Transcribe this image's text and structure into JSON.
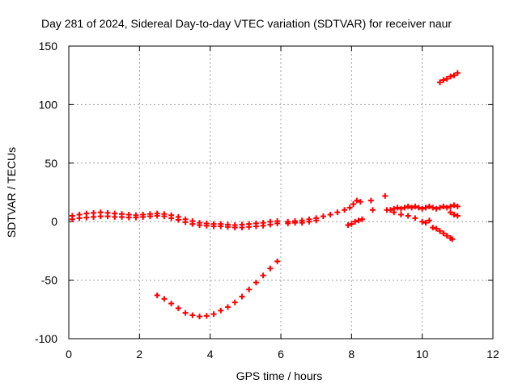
{
  "chart_data": {
    "type": "scatter",
    "title": "Day 281 of 2024, Sidereal Day-to-day VTEC variation (SDTVAR) for receiver naur",
    "xlabel": "GPS time / hours",
    "ylabel": "SDTVAR / TECUs",
    "xlim": [
      0,
      12
    ],
    "ylim": [
      -100,
      150
    ],
    "xticks": [
      0,
      2,
      4,
      6,
      8,
      10,
      12
    ],
    "yticks": [
      -100,
      -50,
      0,
      50,
      100,
      150
    ],
    "grid": true,
    "marker": "+",
    "color": "#ff0000",
    "series": [
      {
        "name": "main-band",
        "points": [
          [
            0.1,
            5
          ],
          [
            0.3,
            6
          ],
          [
            0.5,
            7
          ],
          [
            0.7,
            7.5
          ],
          [
            0.9,
            8
          ],
          [
            1.1,
            7.5
          ],
          [
            1.3,
            7
          ],
          [
            1.5,
            6.5
          ],
          [
            1.7,
            6
          ],
          [
            1.9,
            5.5
          ],
          [
            2.1,
            6
          ],
          [
            2.3,
            6.5
          ],
          [
            2.5,
            7
          ],
          [
            2.7,
            6.5
          ],
          [
            2.9,
            5.5
          ],
          [
            3.1,
            4
          ],
          [
            3.3,
            2
          ],
          [
            3.5,
            0.5
          ],
          [
            3.7,
            -1
          ],
          [
            3.9,
            -1.5
          ],
          [
            4.1,
            -2
          ],
          [
            4.3,
            -2
          ],
          [
            4.5,
            -2.5
          ],
          [
            4.7,
            -3
          ],
          [
            4.9,
            -2.5
          ],
          [
            5.1,
            -2
          ],
          [
            5.3,
            -1.5
          ],
          [
            5.5,
            -1
          ],
          [
            5.7,
            0
          ],
          [
            5.9,
            0.5
          ],
          [
            6.2,
            0
          ],
          [
            6.4,
            0.5
          ],
          [
            6.6,
            1
          ],
          [
            6.8,
            2
          ],
          [
            7.0,
            3
          ],
          [
            7.2,
            4.5
          ],
          [
            7.4,
            6
          ],
          [
            7.6,
            8
          ],
          [
            7.8,
            10
          ],
          [
            7.95,
            12
          ],
          [
            8.05,
            15
          ],
          [
            8.15,
            18
          ],
          [
            8.25,
            17
          ],
          [
            9.0,
            10
          ],
          [
            9.1,
            10
          ],
          [
            9.2,
            11
          ],
          [
            9.3,
            12
          ],
          [
            9.4,
            11
          ],
          [
            9.5,
            12
          ],
          [
            9.6,
            13
          ],
          [
            9.7,
            12
          ],
          [
            9.8,
            13
          ],
          [
            9.9,
            12
          ],
          [
            10.0,
            11
          ],
          [
            10.1,
            12
          ],
          [
            10.2,
            13
          ],
          [
            10.3,
            12
          ],
          [
            10.4,
            11
          ],
          [
            10.5,
            12
          ],
          [
            10.6,
            13
          ],
          [
            10.7,
            12
          ],
          [
            10.8,
            13
          ],
          [
            10.9,
            14
          ],
          [
            11.0,
            13
          ]
        ]
      },
      {
        "name": "lower-band",
        "points": [
          [
            0.1,
            2
          ],
          [
            0.3,
            3
          ],
          [
            0.5,
            3.5
          ],
          [
            0.7,
            4
          ],
          [
            0.9,
            4.5
          ],
          [
            1.1,
            4.5
          ],
          [
            1.3,
            4
          ],
          [
            1.5,
            4
          ],
          [
            1.7,
            3.5
          ],
          [
            1.9,
            3.5
          ],
          [
            2.1,
            4
          ],
          [
            2.3,
            4.5
          ],
          [
            2.5,
            5
          ],
          [
            2.7,
            4.5
          ],
          [
            2.9,
            3
          ],
          [
            3.1,
            1.5
          ],
          [
            3.3,
            -0.5
          ],
          [
            3.5,
            -2
          ],
          [
            3.7,
            -3
          ],
          [
            3.9,
            -3.5
          ],
          [
            4.1,
            -4
          ],
          [
            4.3,
            -4
          ],
          [
            4.5,
            -4.5
          ],
          [
            4.7,
            -5
          ],
          [
            4.9,
            -5
          ],
          [
            5.1,
            -4.5
          ],
          [
            5.3,
            -4
          ],
          [
            5.5,
            -3.5
          ],
          [
            5.7,
            -2.5
          ],
          [
            5.9,
            -1.5
          ],
          [
            6.2,
            -1.5
          ],
          [
            6.4,
            -1
          ],
          [
            6.6,
            -1
          ],
          [
            6.8,
            0
          ],
          [
            7.0,
            1
          ]
        ]
      },
      {
        "name": "late-lower",
        "points": [
          [
            7.9,
            -3
          ],
          [
            8.0,
            -2
          ],
          [
            8.1,
            0
          ],
          [
            8.2,
            1
          ],
          [
            8.3,
            2
          ],
          [
            9.2,
            8
          ],
          [
            9.4,
            6
          ],
          [
            9.6,
            5
          ],
          [
            9.8,
            3
          ],
          [
            10.0,
            0
          ],
          [
            10.1,
            -1
          ],
          [
            10.2,
            1
          ],
          [
            10.8,
            8
          ],
          [
            10.9,
            6
          ],
          [
            11.0,
            5
          ]
        ]
      },
      {
        "name": "isolated",
        "points": [
          [
            8.55,
            18
          ],
          [
            8.6,
            10
          ],
          [
            8.95,
            22
          ]
        ]
      },
      {
        "name": "arc-segment",
        "points": [
          [
            2.5,
            -63
          ],
          [
            2.7,
            -66
          ],
          [
            2.9,
            -70
          ],
          [
            3.1,
            -74
          ],
          [
            3.3,
            -78
          ],
          [
            3.5,
            -80
          ],
          [
            3.7,
            -81
          ],
          [
            3.9,
            -80.5
          ],
          [
            4.1,
            -79
          ],
          [
            4.3,
            -76
          ],
          [
            4.5,
            -73
          ],
          [
            4.7,
            -69
          ],
          [
            4.9,
            -64
          ],
          [
            5.1,
            -58
          ],
          [
            5.3,
            -52
          ],
          [
            5.5,
            -46
          ],
          [
            5.7,
            -40
          ],
          [
            5.9,
            -34
          ]
        ]
      },
      {
        "name": "drop-segment",
        "points": [
          [
            10.3,
            -5
          ],
          [
            10.4,
            -6
          ],
          [
            10.5,
            -8
          ],
          [
            10.6,
            -10
          ],
          [
            10.7,
            -12
          ],
          [
            10.8,
            -14
          ],
          [
            10.85,
            -15
          ]
        ]
      },
      {
        "name": "upper-segment",
        "points": [
          [
            10.5,
            119
          ],
          [
            10.6,
            121
          ],
          [
            10.7,
            122
          ],
          [
            10.8,
            124
          ],
          [
            10.9,
            125
          ],
          [
            11.0,
            127
          ]
        ]
      }
    ]
  }
}
